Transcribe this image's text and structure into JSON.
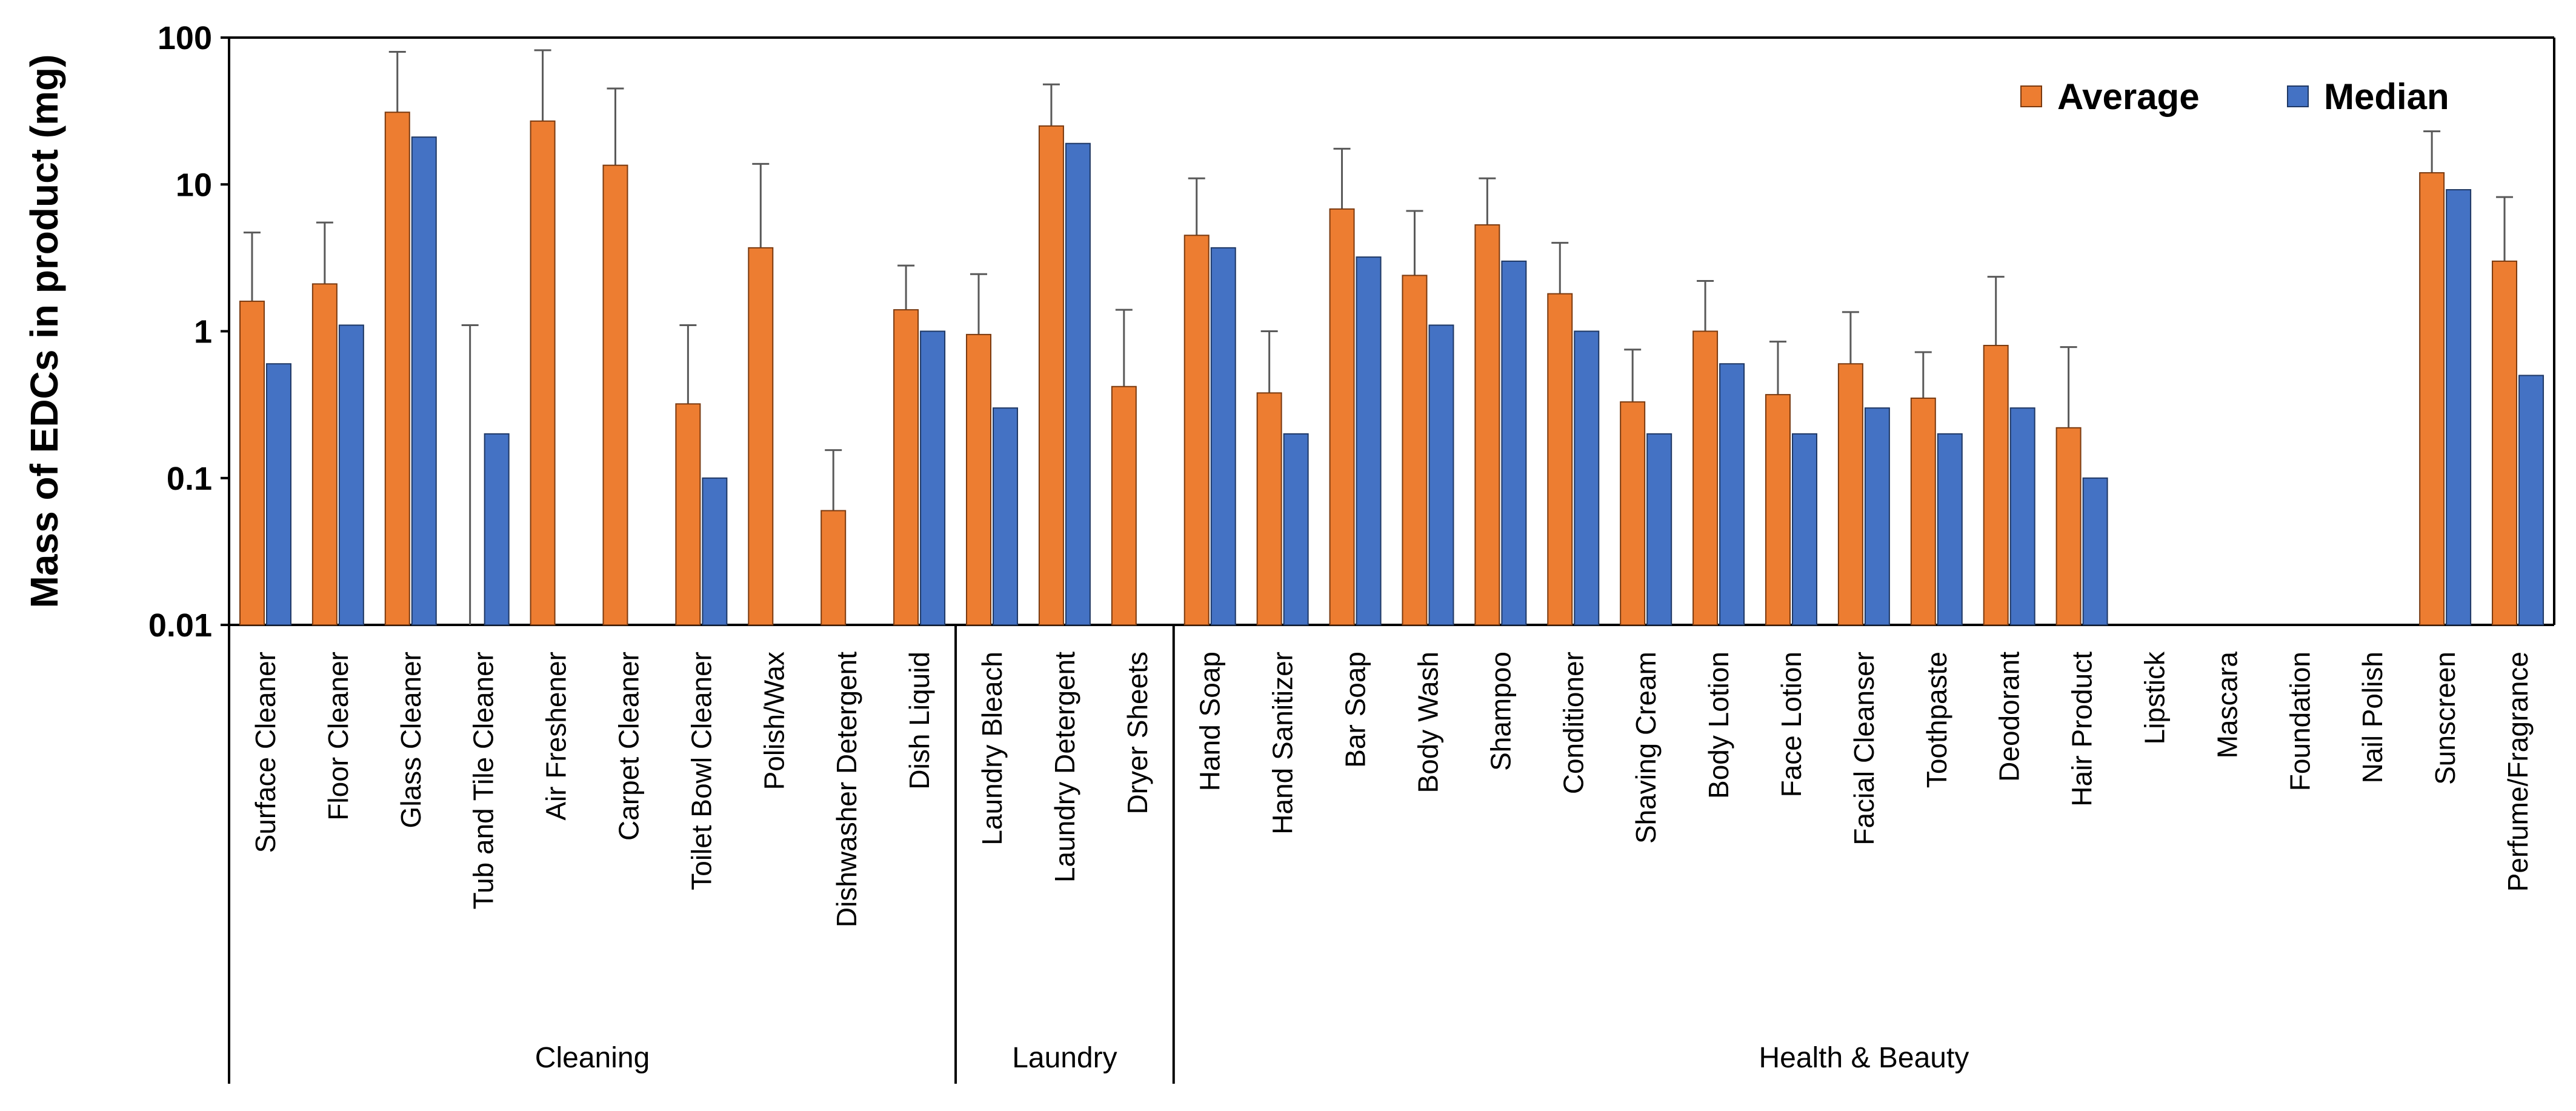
{
  "chart_data": {
    "type": "bar",
    "title": "",
    "ylabel": "Mass of EDCs in product (mg)",
    "xlabel": "",
    "yscale": "log",
    "ylim": [
      0.01,
      100
    ],
    "yticks": [
      "100",
      "10",
      "1",
      "0.1",
      "0.01"
    ],
    "grid": false,
    "legend_position": "top-right",
    "colors": {
      "Average": "#ED7D31",
      "Median": "#4472C4",
      "bar_edge": "#7a3a10",
      "bar_edge_median": "#1f3864"
    },
    "categories": [
      "Surface Cleaner",
      "Floor Cleaner",
      "Glass Cleaner",
      "Tub and Tile Cleaner",
      "Air Freshener",
      "Carpet Cleaner",
      "Toilet Bowl Cleaner",
      "Polish/Wax",
      "Dishwasher Detergent",
      "Dish Liquid",
      "Laundry Bleach",
      "Laundry Detergent",
      "Dryer Sheets",
      "Hand Soap",
      "Hand Sanitizer",
      "Bar Soap",
      "Body Wash",
      "Shampoo",
      "Conditioner",
      "Shaving Cream",
      "Body Lotion",
      "Face Lotion",
      "Facial Cleanser",
      "Toothpaste",
      "Deodorant",
      "Hair Product",
      "Lipstick",
      "Mascara",
      "Foundation",
      "Nail Polish",
      "Sunscreen",
      "Perfume/Fragrance"
    ],
    "groups": [
      {
        "name": "Cleaning",
        "count": 10
      },
      {
        "name": "Laundry",
        "count": 3
      },
      {
        "name": "Health & Beauty",
        "count": 19
      }
    ],
    "series": [
      {
        "name": "Average",
        "values": [
          1.6,
          2.1,
          31,
          null,
          27,
          13.5,
          0.32,
          3.7,
          0.06,
          1.4,
          0.95,
          25,
          0.42,
          4.5,
          0.38,
          6.8,
          2.4,
          5.3,
          1.8,
          0.33,
          1.0,
          0.37,
          0.6,
          0.35,
          0.8,
          0.22,
          null,
          null,
          null,
          null,
          12,
          3.0
        ],
        "error_upper": [
          4.7,
          5.5,
          80,
          1.1,
          82,
          45,
          1.1,
          13.8,
          0.155,
          2.8,
          2.45,
          48,
          1.4,
          11,
          1.0,
          17.5,
          6.6,
          11,
          4.0,
          0.75,
          2.2,
          0.85,
          1.35,
          0.72,
          2.35,
          0.78,
          null,
          null,
          null,
          null,
          23,
          8.2
        ]
      },
      {
        "name": "Median",
        "values": [
          0.6,
          1.1,
          21,
          0.2,
          null,
          null,
          0.1,
          null,
          null,
          1.0,
          0.3,
          19,
          null,
          3.7,
          0.2,
          3.2,
          1.1,
          3.0,
          1.0,
          0.2,
          0.6,
          0.2,
          0.3,
          0.2,
          0.3,
          0.1,
          null,
          null,
          null,
          null,
          9.2,
          0.5
        ]
      }
    ]
  }
}
